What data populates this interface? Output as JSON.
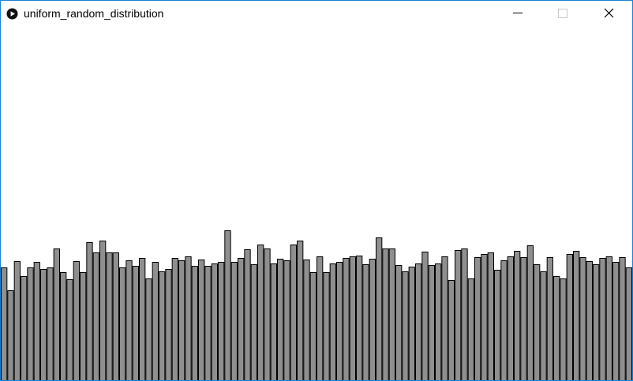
{
  "window": {
    "title": "uniform_random_distribution",
    "icon": "play-circle-icon",
    "controls": {
      "minimize_icon": "minimize-icon",
      "maximize_icon": "maximize-icon",
      "close_icon": "close-icon"
    }
  },
  "colors": {
    "bar_fill": "#8f8f8f",
    "bar_stroke": "#000000",
    "background": "#ffffff",
    "window_border": "#1883d7"
  },
  "chart_data": {
    "type": "bar",
    "title": "",
    "xlabel": "",
    "ylabel": "",
    "ylim": [
      0,
      450
    ],
    "grid": false,
    "legend": "none",
    "values": [
      143,
      114,
      151,
      132,
      143,
      150,
      141,
      143,
      167,
      137,
      128,
      151,
      137,
      175,
      162,
      177,
      162,
      162,
      143,
      152,
      145,
      155,
      129,
      150,
      138,
      141,
      155,
      152,
      157,
      145,
      153,
      145,
      148,
      150,
      190,
      150,
      155,
      166,
      147,
      172,
      167,
      148,
      154,
      152,
      172,
      177,
      153,
      137,
      157,
      137,
      148,
      150,
      155,
      157,
      158,
      147,
      154,
      181,
      167,
      167,
      146,
      138,
      144,
      148,
      163,
      146,
      148,
      157,
      127,
      165,
      167,
      129,
      156,
      160,
      162,
      140,
      152,
      157,
      164,
      156,
      171,
      147,
      138,
      156,
      132,
      129,
      160,
      164,
      156,
      151,
      147,
      155,
      157,
      150,
      156,
      143
    ]
  }
}
